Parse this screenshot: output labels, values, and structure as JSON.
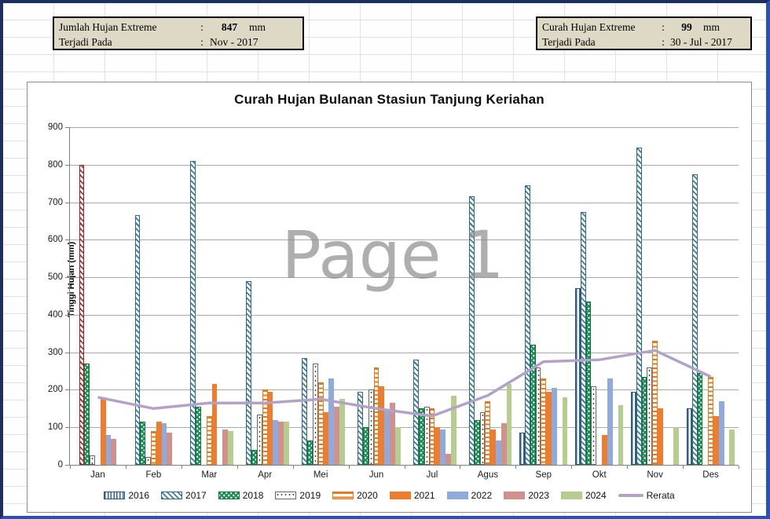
{
  "info_left": {
    "row1_label": "Jumlah Hujan Extreme",
    "row1_colon": ":",
    "row1_value": "847",
    "row1_unit": "mm",
    "row2_label": "Terjadi Pada",
    "row2_colon": ":",
    "row2_value": "Nov - 2017"
  },
  "info_right": {
    "row1_label": "Curah Hujan Extreme",
    "row1_colon": ":",
    "row1_value": "99",
    "row1_unit": "mm",
    "row2_label": "Terjadi Pada",
    "row2_colon": ":",
    "row2_value": "30 - Jul - 2017"
  },
  "watermark": "Page 1",
  "chart_data": {
    "type": "bar",
    "title": "Curah Hujan Bulanan Stasiun Tanjung Keriahan",
    "ylabel": "Tinggi Hujan (mm)",
    "ylim": [
      0,
      900
    ],
    "ytick_step": 100,
    "grid": true,
    "legend_position": "bottom",
    "categories": [
      "Jan",
      "Feb",
      "Mar",
      "Apr",
      "Mei",
      "Jun",
      "Jul",
      "Agus",
      "Sep",
      "Okt",
      "Nov",
      "Des"
    ],
    "series": [
      {
        "name": "2016",
        "style": "vstripe",
        "values": [
          null,
          null,
          null,
          null,
          null,
          null,
          null,
          null,
          85,
          470,
          195,
          150
        ]
      },
      {
        "name": "2017",
        "style": "hatch",
        "values": [
          800,
          665,
          810,
          490,
          285,
          195,
          280,
          715,
          745,
          675,
          845,
          775
        ],
        "highlight": {
          "category": "Jan",
          "color": "#C02B2B",
          "note": "Jan bar drawn with red hatch"
        }
      },
      {
        "name": "2018",
        "style": "check",
        "values": [
          270,
          115,
          155,
          40,
          65,
          100,
          150,
          120,
          320,
          435,
          235,
          245
        ]
      },
      {
        "name": "2019",
        "style": "dots",
        "values": [
          25,
          20,
          null,
          135,
          270,
          200,
          155,
          140,
          260,
          210,
          260,
          null
        ]
      },
      {
        "name": "2020",
        "style": "hstripe",
        "values": [
          null,
          90,
          130,
          200,
          220,
          260,
          150,
          170,
          230,
          null,
          330,
          235
        ]
      },
      {
        "name": "2021",
        "style": "solid",
        "color": "#ED7D31",
        "values": [
          180,
          115,
          215,
          195,
          140,
          210,
          100,
          95,
          195,
          80,
          150,
          130
        ]
      },
      {
        "name": "2022",
        "style": "solid",
        "color": "#8FAADC",
        "values": [
          80,
          110,
          null,
          120,
          230,
          145,
          95,
          65,
          205,
          230,
          null,
          170
        ]
      },
      {
        "name": "2023",
        "style": "solid",
        "color": "#D2908C",
        "values": [
          70,
          85,
          95,
          115,
          155,
          165,
          30,
          110,
          null,
          null,
          null,
          null
        ]
      },
      {
        "name": "2024",
        "style": "solid",
        "color": "#B6CD90",
        "values": [
          null,
          null,
          90,
          115,
          175,
          100,
          185,
          215,
          180,
          160,
          100,
          95
        ]
      }
    ],
    "line_series": {
      "name": "Rerata",
      "color": "#B3A2C7",
      "values": [
        180,
        150,
        165,
        165,
        175,
        150,
        130,
        185,
        275,
        280,
        305,
        235
      ]
    }
  }
}
